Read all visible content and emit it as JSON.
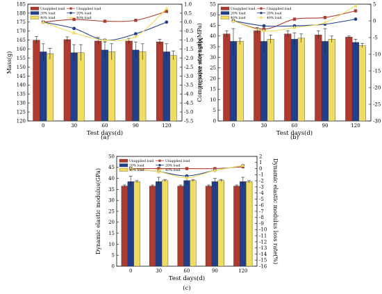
{
  "chart_data": [
    {
      "type": "bar",
      "panel_label": "(a)",
      "xlabel": "Test days(d)",
      "ylabel": "Mass(g)",
      "y2label": "Mass loss rate(%)",
      "categories": [
        "0",
        "30",
        "60",
        "90",
        "120"
      ],
      "ylim": [
        120,
        185
      ],
      "yticks": [
        120,
        125,
        130,
        135,
        140,
        145,
        150,
        155,
        160,
        165,
        170,
        175,
        180,
        185
      ],
      "y2lim": [
        -5.5,
        1.0
      ],
      "y2ticks": [
        1.0,
        0.5,
        0.0,
        -0.5,
        -1.0,
        -1.5,
        -2.0,
        -2.5,
        -3.0,
        -3.5,
        -4.0,
        -4.5,
        -5.0,
        -5.5
      ],
      "y2tick_labels": [
        "1.0",
        "0.5",
        "0.0",
        "-0.5",
        "-1.0",
        "-1.5",
        "-2.0",
        "-2.5",
        "-3.0",
        "-3.5",
        "-4.0",
        "-4.5",
        "-5.0",
        "-5.5"
      ],
      "legend_bars": [
        "Unapplied load",
        "20% load",
        "40% load"
      ],
      "legend_lines": [
        "Unapplied load",
        "20% load",
        "40% load"
      ],
      "legend_position": "top-left",
      "series": [
        {
          "name": "Unapplied load",
          "color": "#b03a2e",
          "values": [
            165.0,
            165.3,
            164.5,
            164.5,
            164.0
          ],
          "errors": [
            2.0,
            1.5,
            2.0,
            1.5,
            1.5
          ]
        },
        {
          "name": "20% load",
          "color": "#1f3f8f",
          "values": [
            158.5,
            158.0,
            159.5,
            159.5,
            158.5
          ],
          "errors": [
            4.5,
            4.5,
            4.5,
            4.5,
            4.5
          ]
        },
        {
          "name": "40% load",
          "color": "#f2dc5d",
          "values": [
            157.5,
            158.0,
            158.5,
            158.5,
            156.5
          ],
          "errors": [
            3.0,
            4.5,
            4.5,
            4.5,
            2.5
          ]
        }
      ],
      "line_series": [
        {
          "name": "Unapplied load",
          "color": "#b03a2e",
          "marker": "square",
          "values": [
            0.0,
            0.15,
            0.05,
            0.1,
            0.6
          ]
        },
        {
          "name": "20% load",
          "color": "#1f3f8f",
          "marker": "circle",
          "values": [
            0.0,
            -0.35,
            -1.0,
            -0.65,
            0.0
          ]
        },
        {
          "name": "40% load",
          "color": "#f2dc5d",
          "marker": "triangle",
          "values": [
            0.0,
            -0.6,
            -1.0,
            -0.8,
            0.75
          ]
        }
      ]
    },
    {
      "type": "bar",
      "panel_label": "(b)",
      "xlabel": "Test days(d)",
      "ylabel": "Compressive strength(MPa)",
      "y2label": "Compressive strength loss rate(%)",
      "categories": [
        "0",
        "30",
        "60",
        "90",
        "120"
      ],
      "ylim": [
        0,
        55
      ],
      "yticks": [
        0,
        5,
        10,
        15,
        20,
        25,
        30,
        35,
        40,
        45,
        50,
        55
      ],
      "y2lim": [
        -30,
        5
      ],
      "y2ticks": [
        5,
        0,
        -5,
        -10,
        -15,
        -20,
        -25,
        -30
      ],
      "y2tick_labels": [
        "5",
        "0",
        "-5",
        "-10",
        "-15",
        "-20",
        "-25",
        "-30"
      ],
      "legend_bars": [
        "Unapplied load",
        "20% load",
        "40% load"
      ],
      "legend_lines": [
        "Unapplied load",
        "20% load",
        "40% load"
      ],
      "legend_position": "top-left",
      "series": [
        {
          "name": "Unapplied load",
          "color": "#b03a2e",
          "values": [
            41.0,
            42.5,
            41.0,
            40.5,
            39.5
          ],
          "errors": [
            1.5,
            1.5,
            1.5,
            2.0,
            0.5
          ]
        },
        {
          "name": "20% load",
          "color": "#1f3f8f",
          "values": [
            37.5,
            37.5,
            38.5,
            37.5,
            37.0
          ],
          "errors": [
            6.0,
            5.0,
            3.0,
            6.0,
            1.5
          ]
        },
        {
          "name": "40% load",
          "color": "#f2dc5d",
          "values": [
            37.5,
            38.5,
            39.0,
            38.5,
            35.5
          ],
          "errors": [
            1.5,
            2.0,
            2.0,
            1.5,
            1.0
          ]
        }
      ],
      "line_series": [
        {
          "name": "Unapplied load",
          "color": "#b03a2e",
          "marker": "square",
          "values": [
            0.0,
            -2.5,
            0.5,
            1.0,
            3.0
          ]
        },
        {
          "name": "20% load",
          "color": "#1f3f8f",
          "marker": "circle",
          "values": [
            0.0,
            -1.5,
            -1.5,
            -1.0,
            0.5
          ]
        },
        {
          "name": "40% load",
          "color": "#f2dc5d",
          "marker": "triangle",
          "values": [
            0.0,
            -3.0,
            -2.0,
            -0.5,
            4.5
          ]
        }
      ]
    },
    {
      "type": "bar",
      "panel_label": "(c)",
      "xlabel": "Test days(d)",
      "ylabel": "Dynamic elastic modulus(GPa)",
      "y2label": "Dynamic elastic modulus loss rate(%)",
      "categories": [
        "0",
        "30",
        "60",
        "90",
        "120"
      ],
      "ylim": [
        0,
        50
      ],
      "yticks": [
        0,
        5,
        10,
        15,
        20,
        25,
        30,
        35,
        40,
        45,
        50
      ],
      "y2lim": [
        -16,
        2
      ],
      "y2ticks": [
        2,
        1,
        0,
        -1,
        -2,
        -3,
        -4,
        -5,
        -6,
        -7,
        -8,
        -9,
        -10,
        -11,
        -12,
        -13,
        -14,
        -15,
        -16
      ],
      "y2tick_labels": [
        "2",
        "1",
        "0",
        "-1",
        "-2",
        "-3",
        "-4",
        "-5",
        "-6",
        "-7",
        "-8",
        "-9",
        "-10",
        "-11",
        "-12",
        "-13",
        "-14",
        "-15",
        "-16"
      ],
      "legend_bars": [
        "Unapplied load",
        "20% load",
        "40% load"
      ],
      "legend_lines": [
        "Unapplied load",
        "20% load",
        "40% load"
      ],
      "legend_position": "top-left",
      "series": [
        {
          "name": "Unapplied load",
          "color": "#b03a2e",
          "values": [
            36.5,
            36.5,
            36.5,
            36.5,
            36.5
          ],
          "errors": [
            0.5,
            0.5,
            0.5,
            0.5,
            0.5
          ]
        },
        {
          "name": "20% load",
          "color": "#1f3f8f",
          "values": [
            38.5,
            38.5,
            39.0,
            38.5,
            38.5
          ],
          "errors": [
            2.5,
            2.0,
            2.0,
            1.5,
            2.0
          ]
        },
        {
          "name": "40% load",
          "color": "#f2dc5d",
          "values": [
            38.5,
            39.0,
            39.0,
            39.0,
            38.5
          ],
          "errors": [
            0.5,
            0.5,
            0.5,
            0.5,
            0.5
          ]
        }
      ],
      "line_series": [
        {
          "name": "Unapplied load",
          "color": "#b03a2e",
          "marker": "square",
          "values": [
            0.0,
            0.0,
            0.0,
            0.0,
            0.3
          ]
        },
        {
          "name": "20% load",
          "color": "#1f3f8f",
          "marker": "circle",
          "values": [
            0.0,
            -0.5,
            -1.2,
            -0.3,
            0.5
          ]
        },
        {
          "name": "40% load",
          "color": "#f2dc5d",
          "marker": "triangle",
          "values": [
            0.0,
            -0.5,
            -1.5,
            -0.3,
            0.5
          ]
        }
      ]
    }
  ]
}
